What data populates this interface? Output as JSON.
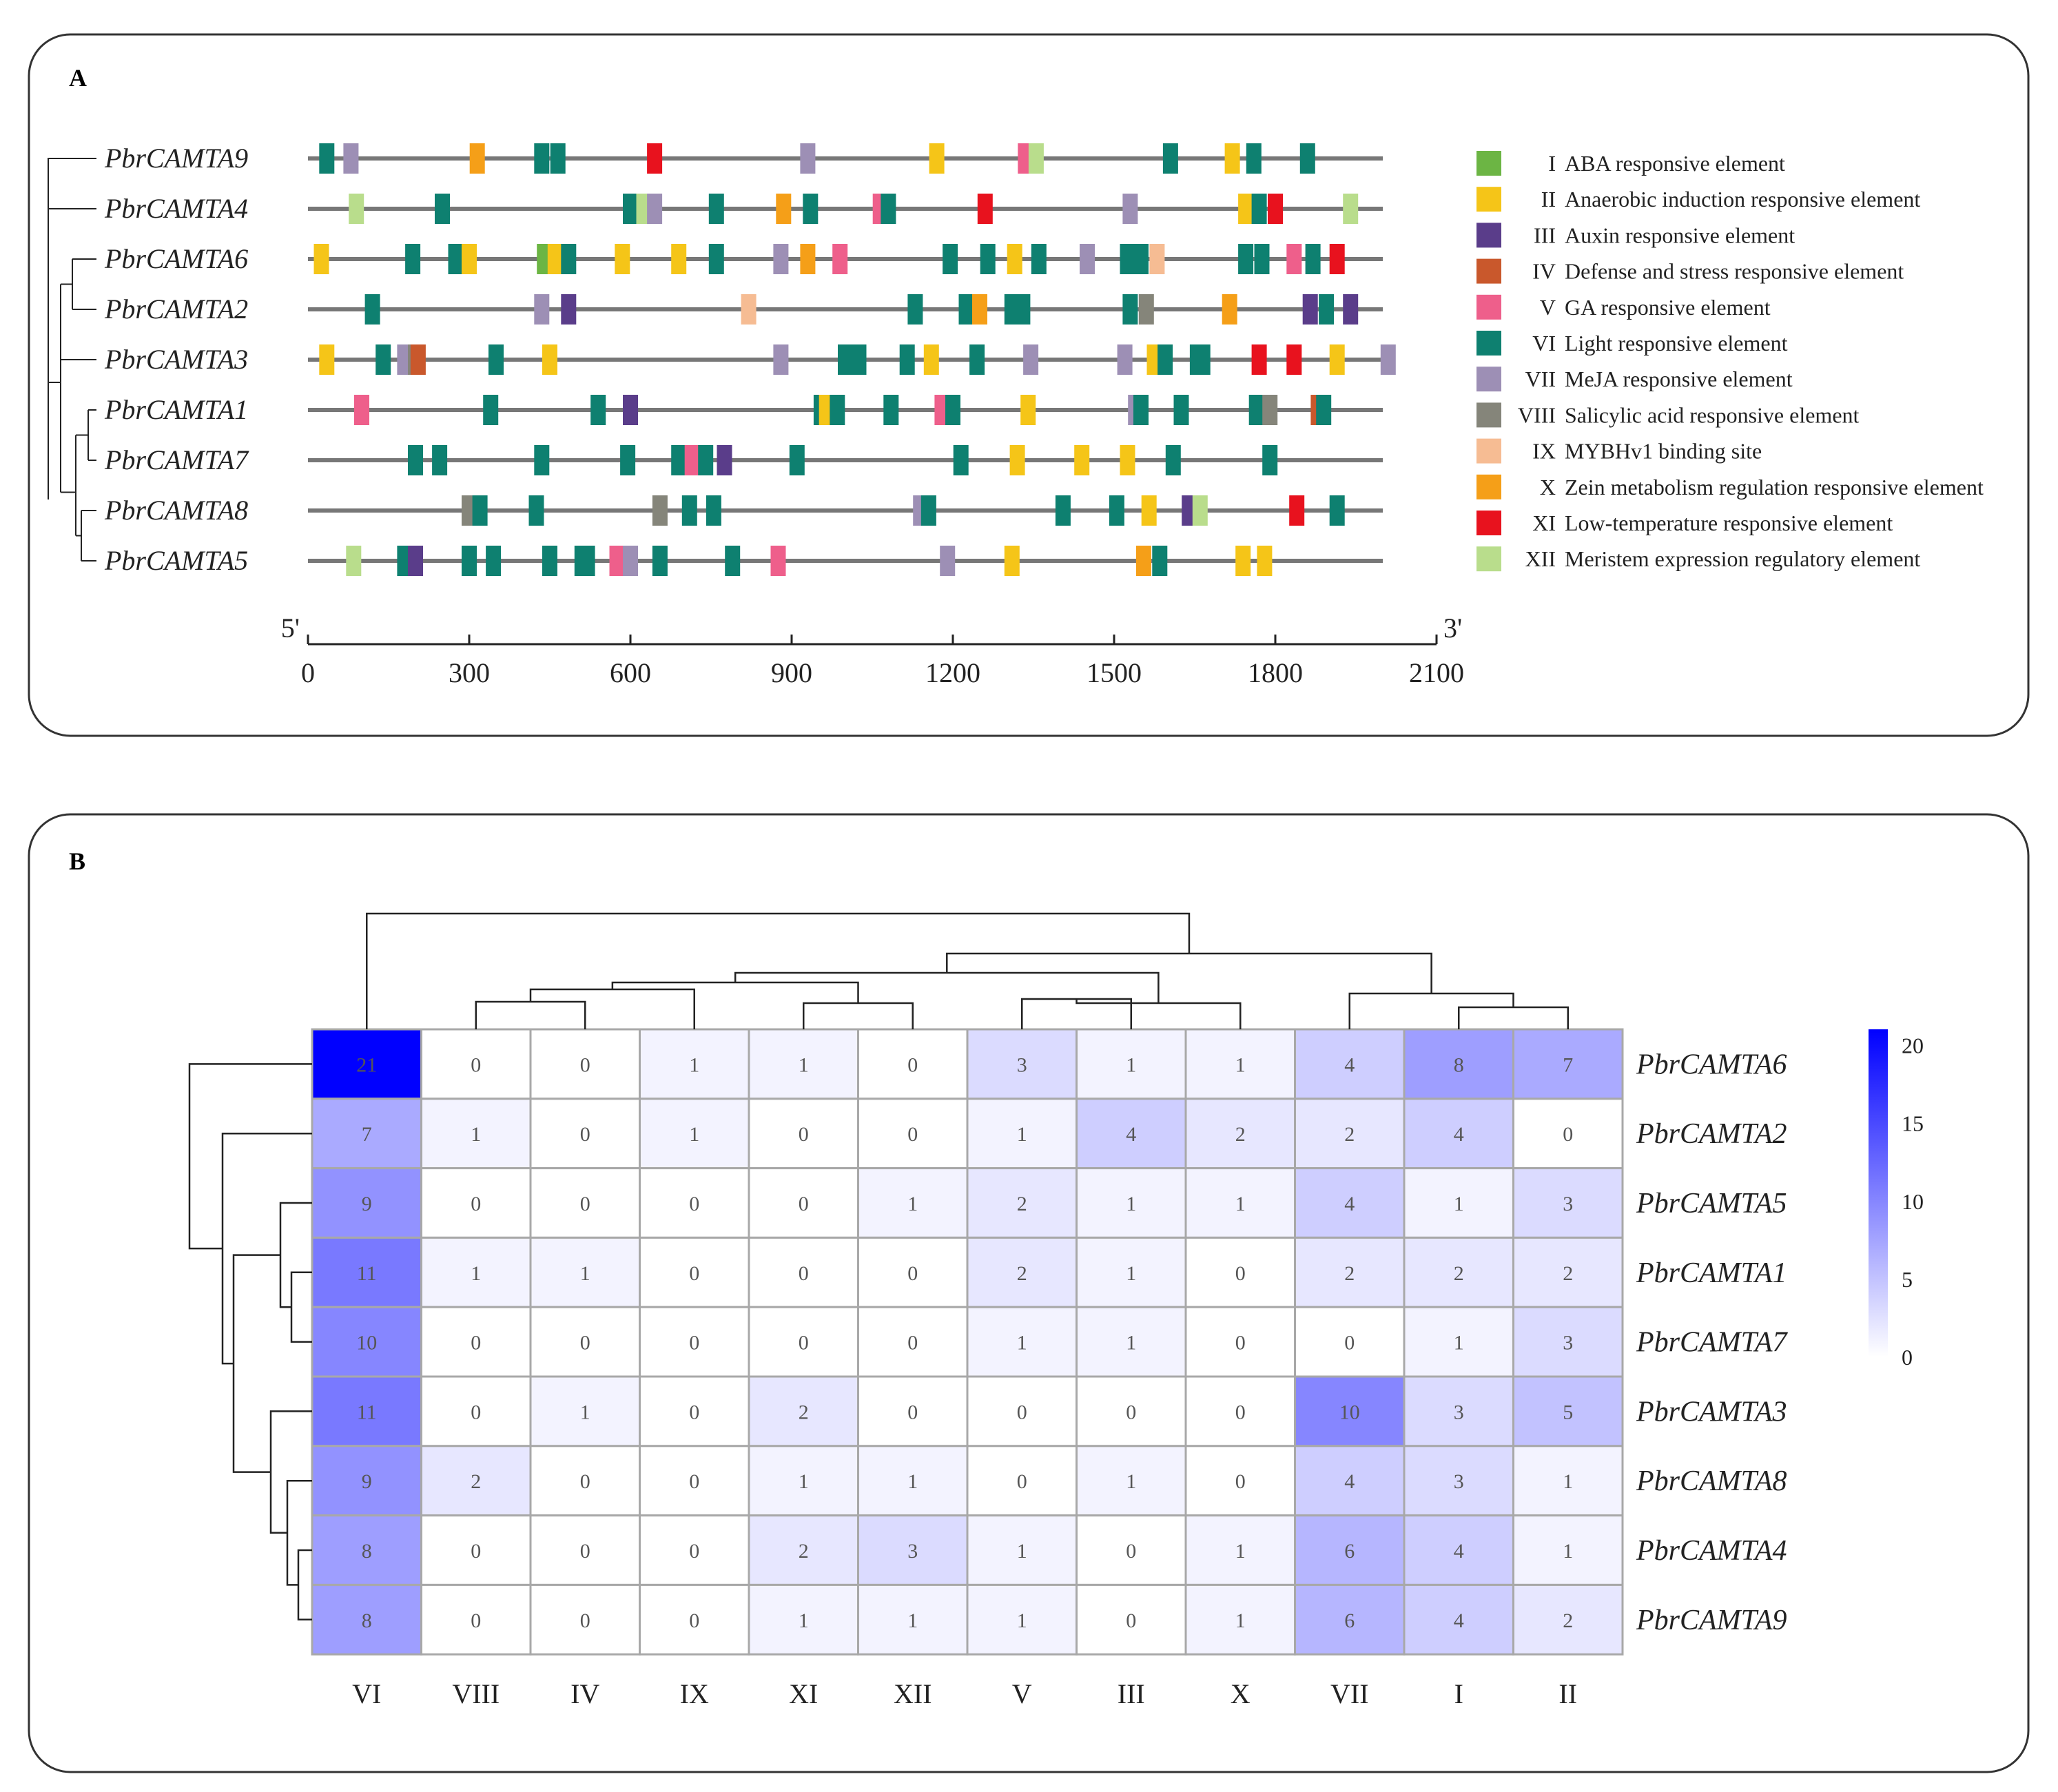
{
  "panel_a": {
    "label": "A",
    "type": "motif_map",
    "axis": {
      "start_label": "5'",
      "end_label": "3'",
      "xlim": [
        0,
        2100
      ],
      "ticks": [
        0,
        300,
        600,
        900,
        1200,
        1500,
        1800,
        2100
      ]
    },
    "legend": [
      {
        "roman": "I",
        "label": "ABA responsive element",
        "color": "#6cb544"
      },
      {
        "roman": "II",
        "label": "Anaerobic induction responsive element",
        "color": "#f5c518"
      },
      {
        "roman": "III",
        "label": "Auxin responsive element",
        "color": "#5a3d8a"
      },
      {
        "roman": "IV",
        "label": "Defense and stress responsive element",
        "color": "#c9582c"
      },
      {
        "roman": "V",
        "label": "GA responsive element",
        "color": "#ee5f8b"
      },
      {
        "roman": "VI",
        "label": "Light responsive element",
        "color": "#0e8070"
      },
      {
        "roman": "VII",
        "label": "MeJA responsive element",
        "color": "#9d8fb5"
      },
      {
        "roman": "VIII",
        "label": "Salicylic acid responsive element",
        "color": "#85857a"
      },
      {
        "roman": "IX",
        "label": "MYBHv1 binding site",
        "color": "#f6bc93"
      },
      {
        "roman": "X",
        "label": "Zein metabolism regulation responsive element",
        "color": "#f59f18"
      },
      {
        "roman": "XI",
        "label": "Low-temperature responsive element",
        "color": "#e8121e"
      },
      {
        "roman": "XII",
        "label": "Meristem expression regulatory element",
        "color": "#b9dd8c"
      }
    ],
    "genes": [
      {
        "name": "PbrCAMTA9",
        "length": 2000,
        "elements": [
          [
            35,
            "VI"
          ],
          [
            80,
            "VII"
          ],
          [
            315,
            "X"
          ],
          [
            435,
            "VI"
          ],
          [
            465,
            "VI"
          ],
          [
            645,
            "XI"
          ],
          [
            930,
            "VII"
          ],
          [
            1170,
            "II"
          ],
          [
            1335,
            "V"
          ],
          [
            1355,
            "XII"
          ],
          [
            1605,
            "VI"
          ],
          [
            1720,
            "II"
          ],
          [
            1760,
            "VI"
          ],
          [
            1860,
            "VI"
          ]
        ]
      },
      {
        "name": "PbrCAMTA4",
        "length": 2000,
        "elements": [
          [
            90,
            "XII"
          ],
          [
            250,
            "VI"
          ],
          [
            600,
            "VI"
          ],
          [
            625,
            "XII"
          ],
          [
            645,
            "VII"
          ],
          [
            760,
            "VI"
          ],
          [
            885,
            "X"
          ],
          [
            935,
            "VI"
          ],
          [
            1065,
            "V"
          ],
          [
            1080,
            "VI"
          ],
          [
            1260,
            "XI"
          ],
          [
            1530,
            "VII"
          ],
          [
            1745,
            "II"
          ],
          [
            1770,
            "VI"
          ],
          [
            1800,
            "XI"
          ],
          [
            1940,
            "XII"
          ]
        ]
      },
      {
        "name": "PbrCAMTA6",
        "length": 2000,
        "elements": [
          [
            25,
            "II"
          ],
          [
            195,
            "VI"
          ],
          [
            275,
            "VI"
          ],
          [
            300,
            "II"
          ],
          [
            440,
            "I"
          ],
          [
            460,
            "II"
          ],
          [
            485,
            "VI"
          ],
          [
            585,
            "II"
          ],
          [
            690,
            "II"
          ],
          [
            760,
            "VI"
          ],
          [
            880,
            "VII"
          ],
          [
            930,
            "X"
          ],
          [
            990,
            "V"
          ],
          [
            1195,
            "VI"
          ],
          [
            1265,
            "VI"
          ],
          [
            1315,
            "II"
          ],
          [
            1360,
            "VI"
          ],
          [
            1450,
            "VII"
          ],
          [
            1525,
            "VI"
          ],
          [
            1550,
            "VI"
          ],
          [
            1580,
            "IX"
          ],
          [
            1745,
            "VI"
          ],
          [
            1775,
            "VI"
          ],
          [
            1835,
            "V"
          ],
          [
            1870,
            "VI"
          ],
          [
            1915,
            "XI"
          ]
        ]
      },
      {
        "name": "PbrCAMTA2",
        "length": 2000,
        "elements": [
          [
            120,
            "VI"
          ],
          [
            435,
            "VII"
          ],
          [
            485,
            "III"
          ],
          [
            820,
            "IX"
          ],
          [
            1130,
            "VI"
          ],
          [
            1225,
            "VI"
          ],
          [
            1250,
            "X"
          ],
          [
            1310,
            "VI"
          ],
          [
            1330,
            "VI"
          ],
          [
            1530,
            "VI"
          ],
          [
            1560,
            "VIII"
          ],
          [
            1715,
            "X"
          ],
          [
            1865,
            "III"
          ],
          [
            1895,
            "VI"
          ],
          [
            1940,
            "III"
          ]
        ]
      },
      {
        "name": "PbrCAMTA3",
        "length": 2000,
        "elements": [
          [
            35,
            "II"
          ],
          [
            140,
            "VI"
          ],
          [
            180,
            "VII"
          ],
          [
            200,
            "VIII"
          ],
          [
            205,
            "IV"
          ],
          [
            350,
            "VI"
          ],
          [
            450,
            "II"
          ],
          [
            880,
            "VII"
          ],
          [
            1000,
            "VI"
          ],
          [
            1025,
            "VI"
          ],
          [
            1115,
            "VI"
          ],
          [
            1160,
            "II"
          ],
          [
            1245,
            "VI"
          ],
          [
            1345,
            "VII"
          ],
          [
            1520,
            "VII"
          ],
          [
            1575,
            "II"
          ],
          [
            1595,
            "VI"
          ],
          [
            1655,
            "VI"
          ],
          [
            1665,
            "VI"
          ],
          [
            1770,
            "XI"
          ],
          [
            1835,
            "XI"
          ],
          [
            1915,
            "II"
          ],
          [
            2010,
            "VII"
          ]
        ]
      },
      {
        "name": "PbrCAMTA1",
        "length": 2000,
        "elements": [
          [
            100,
            "V"
          ],
          [
            340,
            "VI"
          ],
          [
            540,
            "VI"
          ],
          [
            600,
            "III"
          ],
          [
            955,
            "VI"
          ],
          [
            965,
            "II"
          ],
          [
            985,
            "VI"
          ],
          [
            1085,
            "VI"
          ],
          [
            1180,
            "V"
          ],
          [
            1200,
            "VI"
          ],
          [
            1340,
            "II"
          ],
          [
            1540,
            "VII"
          ],
          [
            1550,
            "VI"
          ],
          [
            1625,
            "VI"
          ],
          [
            1765,
            "VI"
          ],
          [
            1790,
            "VIII"
          ],
          [
            1880,
            "IV"
          ],
          [
            1890,
            "VI"
          ]
        ]
      },
      {
        "name": "PbrCAMTA7",
        "length": 2000,
        "elements": [
          [
            200,
            "VI"
          ],
          [
            245,
            "VI"
          ],
          [
            435,
            "VI"
          ],
          [
            595,
            "VI"
          ],
          [
            690,
            "VI"
          ],
          [
            715,
            "V"
          ],
          [
            740,
            "VI"
          ],
          [
            775,
            "III"
          ],
          [
            910,
            "VI"
          ],
          [
            1215,
            "VI"
          ],
          [
            1320,
            "II"
          ],
          [
            1440,
            "II"
          ],
          [
            1525,
            "II"
          ],
          [
            1610,
            "VI"
          ],
          [
            1790,
            "VI"
          ]
        ]
      },
      {
        "name": "PbrCAMTA8",
        "length": 2000,
        "elements": [
          [
            300,
            "VIII"
          ],
          [
            320,
            "VI"
          ],
          [
            425,
            "VI"
          ],
          [
            655,
            "VIII"
          ],
          [
            710,
            "VI"
          ],
          [
            755,
            "VI"
          ],
          [
            1140,
            "VII"
          ],
          [
            1155,
            "VI"
          ],
          [
            1405,
            "VI"
          ],
          [
            1505,
            "VI"
          ],
          [
            1565,
            "II"
          ],
          [
            1640,
            "III"
          ],
          [
            1660,
            "XII"
          ],
          [
            1840,
            "XI"
          ],
          [
            1915,
            "VI"
          ]
        ]
      },
      {
        "name": "PbrCAMTA5",
        "length": 2000,
        "elements": [
          [
            85,
            "XII"
          ],
          [
            180,
            "VI"
          ],
          [
            200,
            "III"
          ],
          [
            300,
            "VI"
          ],
          [
            345,
            "VI"
          ],
          [
            450,
            "VI"
          ],
          [
            510,
            "VI"
          ],
          [
            520,
            "VI"
          ],
          [
            575,
            "V"
          ],
          [
            600,
            "VII"
          ],
          [
            655,
            "VI"
          ],
          [
            790,
            "VI"
          ],
          [
            875,
            "V"
          ],
          [
            1190,
            "VII"
          ],
          [
            1310,
            "II"
          ],
          [
            1555,
            "X"
          ],
          [
            1585,
            "VI"
          ],
          [
            1740,
            "II"
          ],
          [
            1780,
            "II"
          ]
        ]
      }
    ]
  },
  "panel_b": {
    "label": "B",
    "type": "heatmap",
    "columns": [
      "VI",
      "VIII",
      "IV",
      "IX",
      "XI",
      "XII",
      "V",
      "III",
      "X",
      "VII",
      "I",
      "II"
    ],
    "rows": [
      "PbrCAMTA6",
      "PbrCAMTA2",
      "PbrCAMTA5",
      "PbrCAMTA1",
      "PbrCAMTA7",
      "PbrCAMTA3",
      "PbrCAMTA8",
      "PbrCAMTA4",
      "PbrCAMTA9"
    ],
    "values": [
      [
        21,
        0,
        0,
        1,
        1,
        0,
        3,
        1,
        1,
        4,
        8,
        7
      ],
      [
        7,
        1,
        0,
        1,
        0,
        0,
        1,
        4,
        2,
        2,
        4,
        0
      ],
      [
        9,
        0,
        0,
        0,
        0,
        1,
        2,
        1,
        1,
        4,
        1,
        3
      ],
      [
        11,
        1,
        1,
        0,
        0,
        0,
        2,
        1,
        0,
        2,
        2,
        2
      ],
      [
        10,
        0,
        0,
        0,
        0,
        0,
        1,
        1,
        0,
        0,
        1,
        3
      ],
      [
        11,
        0,
        1,
        0,
        2,
        0,
        0,
        0,
        0,
        10,
        3,
        5
      ],
      [
        9,
        2,
        0,
        0,
        1,
        1,
        0,
        1,
        0,
        4,
        3,
        1
      ],
      [
        8,
        0,
        0,
        0,
        2,
        3,
        1,
        0,
        1,
        6,
        4,
        1
      ],
      [
        8,
        0,
        0,
        0,
        1,
        1,
        1,
        0,
        1,
        6,
        4,
        2
      ]
    ],
    "colorbar": {
      "min": 0,
      "max": 21,
      "ticks": [
        0,
        5,
        10,
        15,
        20
      ],
      "low_color": "#ffffff",
      "high_color": "#0000ff"
    }
  }
}
